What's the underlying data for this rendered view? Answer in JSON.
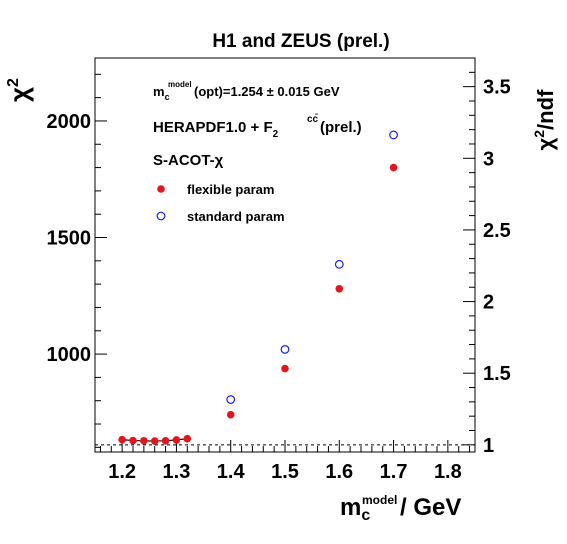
{
  "chart_data": {
    "type": "scatter",
    "title": "H1 and ZEUS (prel.)",
    "xlabel": {
      "main": "m",
      "sub": "c",
      "sup": "model",
      "unit": " / GeV"
    },
    "ylabel_left": {
      "main": "χ",
      "sup": "2"
    },
    "ylabel_right": {
      "main": "χ",
      "sup": "2",
      "suffix": "/ndf"
    },
    "xlim": [
      1.15,
      1.85
    ],
    "ylim_left": [
      580,
      2270
    ],
    "ylim_right": [
      0.95,
      3.7
    ],
    "x_ticks": [
      "1.2",
      "1.3",
      "1.4",
      "1.5",
      "1.6",
      "1.7",
      "1.8"
    ],
    "y_ticks_left": [
      "1000",
      "1500",
      "2000"
    ],
    "y_ticks_right": [
      "1",
      "1.5",
      "2",
      "2.5",
      "3",
      "3.5"
    ],
    "reference_line": {
      "axis": "right",
      "value": 1,
      "style": "dashed"
    },
    "annotations": {
      "mc_opt": {
        "m": "m",
        "sub": "c",
        "sup": "model",
        "rest": "(opt)=1.254 ± 0.015 GeV"
      },
      "herapdf": {
        "text": "HERAPDF1.0 + F",
        "sub": "2",
        "sup": "cc̄",
        "rest": "(prel.)"
      },
      "scheme": "S-ACOT-χ"
    },
    "series": [
      {
        "name": "flexible param",
        "marker": "filled-circle",
        "color": "#e8141c",
        "x": [
          1.2,
          1.22,
          1.24,
          1.26,
          1.28,
          1.3,
          1.32,
          1.4,
          1.5,
          1.6,
          1.7
        ],
        "y": [
          633,
          629,
          628,
          627,
          628,
          632,
          637,
          740,
          938,
          1280,
          1800
        ],
        "connect_first_n": 7
      },
      {
        "name": "standard param",
        "marker": "open-circle",
        "color": "#1a1aff",
        "x": [
          1.4,
          1.5,
          1.6,
          1.7
        ],
        "y": [
          805,
          1020,
          1385,
          1940
        ]
      }
    ],
    "grid": false,
    "legend_position": "top-left (inside)"
  }
}
